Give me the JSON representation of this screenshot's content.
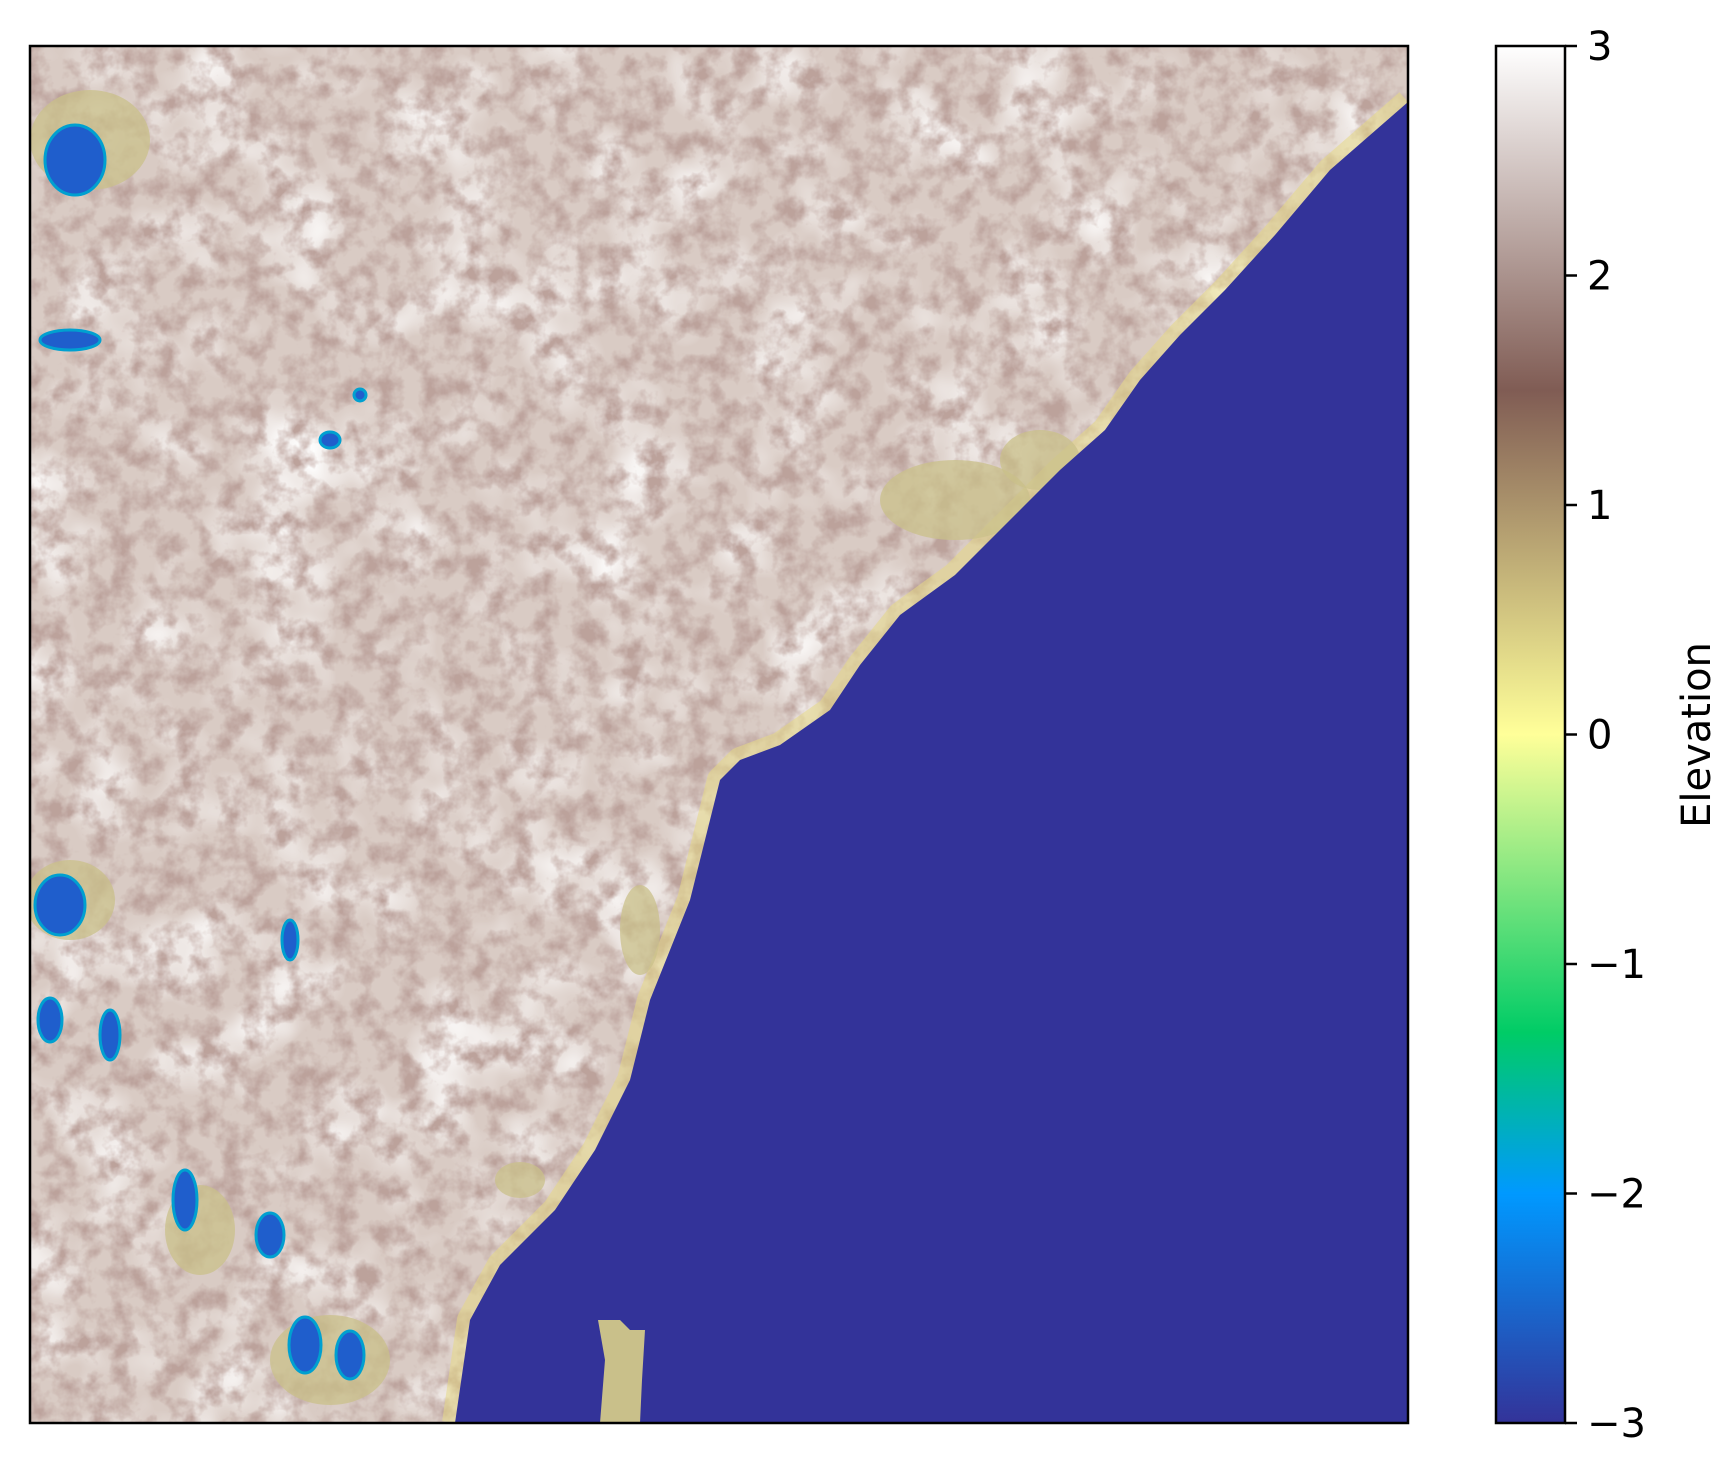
{
  "chart_data": {
    "type": "heatmap",
    "title": "",
    "xlabel": "",
    "ylabel": "",
    "colormap": "terrain",
    "colorbar": {
      "label": "Elevation",
      "range": [
        -3,
        3
      ],
      "ticks": [
        {
          "value": 3,
          "label": "3"
        },
        {
          "value": 2,
          "label": "2"
        },
        {
          "value": 1,
          "label": "1"
        },
        {
          "value": 0,
          "label": "0"
        },
        {
          "value": -1,
          "label": "−1"
        },
        {
          "value": -2,
          "label": "−2"
        },
        {
          "value": -3,
          "label": "−3"
        }
      ],
      "color_stops": [
        {
          "value": -3,
          "color": "#333399"
        },
        {
          "value": -2,
          "color": "#0099ff"
        },
        {
          "value": -1.3,
          "color": "#00cc66"
        },
        {
          "value": 0,
          "color": "#ffff99"
        },
        {
          "value": 1.5,
          "color": "#805c54"
        },
        {
          "value": 3,
          "color": "#ffffff"
        }
      ]
    },
    "regions": {
      "ocean_color": "#333399",
      "land_color": "#d9cbc4",
      "coast_color": "#e6d985",
      "lowland_color": "#c9c08a",
      "depression_color": "#1f5ecc"
    },
    "grid": false,
    "axes_ticks": false
  }
}
